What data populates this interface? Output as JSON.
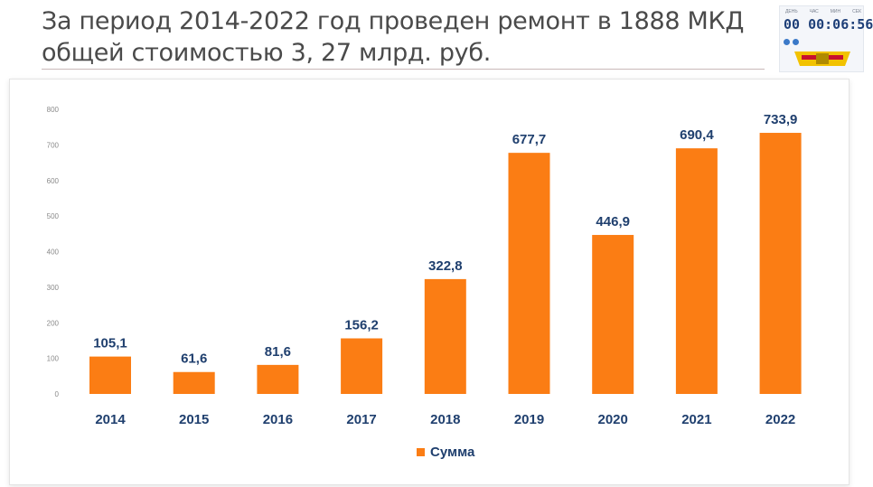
{
  "slide": {
    "title_line1": "За период 2014-2022 год проведен ремонт в 1888 МКД",
    "title_line2": "общей стоимостью 3, 27 млрд. руб."
  },
  "timer": {
    "labels": [
      "ДЕНЬ",
      "ЧАС",
      "МИН",
      "СЕК"
    ],
    "value": "00 00:06:56"
  },
  "colors": {
    "bar": "#fb7d14",
    "label": "#1f3f6e",
    "axis_tick": "#8a8a8a"
  },
  "chart_data": {
    "type": "bar",
    "categories": [
      "2014",
      "2015",
      "2016",
      "2017",
      "2018",
      "2019",
      "2020",
      "2021",
      "2022"
    ],
    "series": [
      {
        "name": "Сумма",
        "values": [
          105.1,
          61.6,
          81.6,
          156.2,
          322.8,
          677.7,
          446.9,
          690.4,
          733.9
        ],
        "labels": [
          "105,1",
          "61,6",
          "81,6",
          "156,2",
          "322,8",
          "677,7",
          "446,9",
          "690,4",
          "733,9"
        ]
      }
    ],
    "yticks": [
      "0",
      "100",
      "200",
      "300",
      "400",
      "500",
      "600",
      "700",
      "800"
    ],
    "ylim": [
      0,
      800
    ],
    "grid": false,
    "legend": "bottom"
  }
}
